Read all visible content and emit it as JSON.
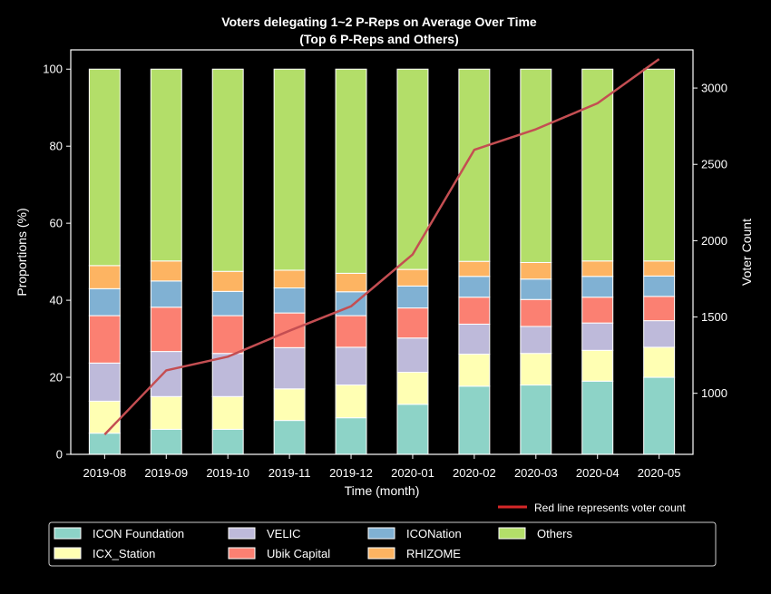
{
  "chart_data": {
    "type": "bar",
    "stacked": true,
    "title": "Voters delegating 1~2 P-Reps on Average Over Time",
    "subtitle": "(Top 6 P-Reps and Others)",
    "xlabel": "Time (month)",
    "ylabel": "Proportions (%)",
    "y2label": "Voter Count",
    "ylim": [
      0,
      105
    ],
    "y2lim": [
      600,
      3250
    ],
    "yticks": [
      "0",
      "20",
      "40",
      "60",
      "80",
      "100"
    ],
    "y2ticks": [
      "1000",
      "1500",
      "2000",
      "2500",
      "3000"
    ],
    "categories": [
      "2019-08",
      "2019-09",
      "2019-10",
      "2019-11",
      "2019-12",
      "2020-01",
      "2020-02",
      "2020-03",
      "2020-04",
      "2020-05"
    ],
    "series": [
      {
        "name": "ICON Foundation",
        "color": "#8dd3c7",
        "values": [
          5.5,
          6.5,
          6.5,
          8.8,
          9.5,
          13.0,
          17.7,
          18.0,
          19.0,
          20.0
        ]
      },
      {
        "name": "ICX_Station",
        "color": "#ffffb3",
        "values": [
          8.3,
          8.5,
          8.5,
          8.2,
          8.5,
          8.3,
          8.3,
          8.2,
          8.0,
          7.8
        ]
      },
      {
        "name": "VELIC",
        "color": "#bebada",
        "values": [
          9.9,
          11.7,
          11.2,
          10.7,
          9.8,
          8.9,
          7.8,
          7.0,
          7.1,
          6.9
        ]
      },
      {
        "name": "Ubik Capital",
        "color": "#fb8072",
        "values": [
          12.3,
          11.5,
          9.8,
          9.0,
          8.2,
          7.8,
          7.0,
          7.0,
          6.7,
          6.3
        ]
      },
      {
        "name": "ICONation",
        "color": "#80b1d3",
        "values": [
          7.0,
          6.8,
          6.3,
          6.5,
          6.2,
          5.7,
          5.4,
          5.3,
          5.4,
          5.3
        ]
      },
      {
        "name": "RHIZOME",
        "color": "#fdb462",
        "values": [
          6.0,
          5.2,
          5.2,
          4.6,
          4.8,
          4.3,
          3.9,
          4.3,
          4.0,
          3.9
        ]
      },
      {
        "name": "Others",
        "color": "#b3de69",
        "values": [
          51.0,
          49.8,
          52.5,
          52.2,
          53.0,
          52.0,
          49.9,
          50.2,
          49.8,
          49.8
        ]
      }
    ],
    "line": {
      "name": "Voter Count",
      "color": "#c44e52",
      "values": [
        730,
        1150,
        1240,
        1410,
        1570,
        1910,
        2595,
        2730,
        2900,
        3190
      ]
    },
    "note": "Red line represents voter count",
    "legend_position": "bottom",
    "grid": false
  }
}
